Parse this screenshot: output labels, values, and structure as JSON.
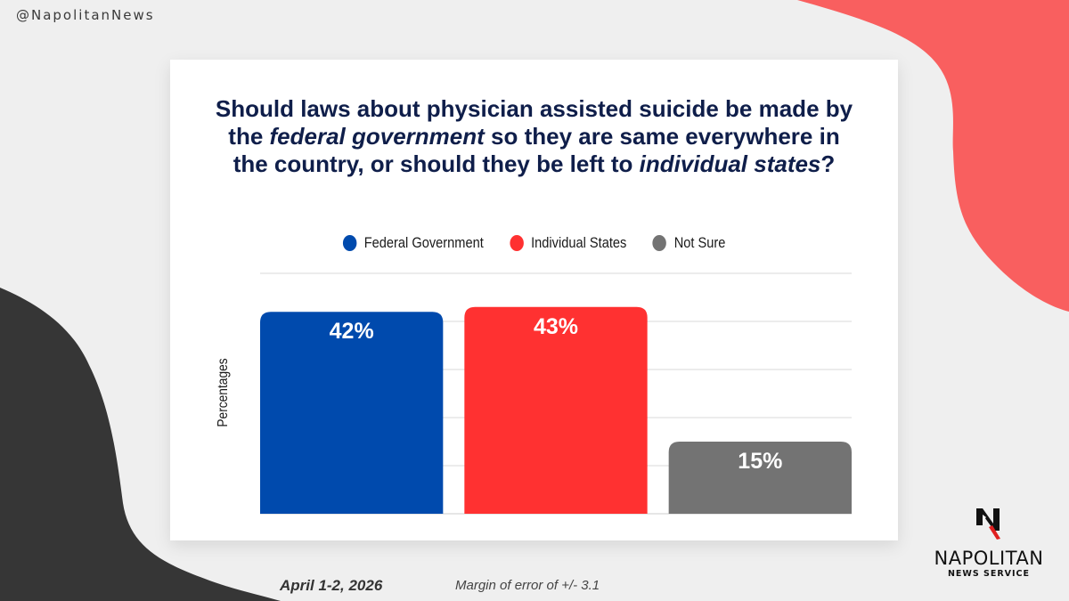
{
  "header": {
    "handle": "@NapolitanNews"
  },
  "card": {
    "title_parts": [
      {
        "text": "Should laws about physician assisted suicide be made by the ",
        "italic": false
      },
      {
        "text": "federal government",
        "italic": true
      },
      {
        "text": " so they are same everywhere in the country, or should they be left to ",
        "italic": false
      },
      {
        "text": "individual states",
        "italic": true
      },
      {
        "text": "?",
        "italic": false
      }
    ]
  },
  "chart_data": {
    "type": "bar",
    "title": "Should laws about physician assisted suicide be made by the federal government so they are same everywhere in the country, or should they be left to individual states?",
    "categories": [
      "Federal Government",
      "Individual States",
      "Not Sure"
    ],
    "values": [
      42,
      43,
      15
    ],
    "data_labels": [
      "42%",
      "43%",
      "15%"
    ],
    "colors": [
      "#004aad",
      "#ff3131",
      "#737373"
    ],
    "xlabel": "",
    "ylabel": "Percentages",
    "ylim": [
      0,
      50
    ],
    "grid": true,
    "grid_step": 10,
    "legend": {
      "position": "top-center",
      "entries": [
        "Federal Government",
        "Individual States",
        "Not Sure"
      ]
    }
  },
  "footer": {
    "date": "April 1-2, 2026",
    "margin_of_error": "Margin of error of +/- 3.1"
  },
  "logo": {
    "name": "NAPOLITAN",
    "subtitle": "NEWS SERVICE"
  },
  "colors": {
    "background": "#efefef",
    "accent_red_shape": "#f95f5f",
    "dark_shape": "#363636",
    "title_navy": "#0f1e4a"
  }
}
